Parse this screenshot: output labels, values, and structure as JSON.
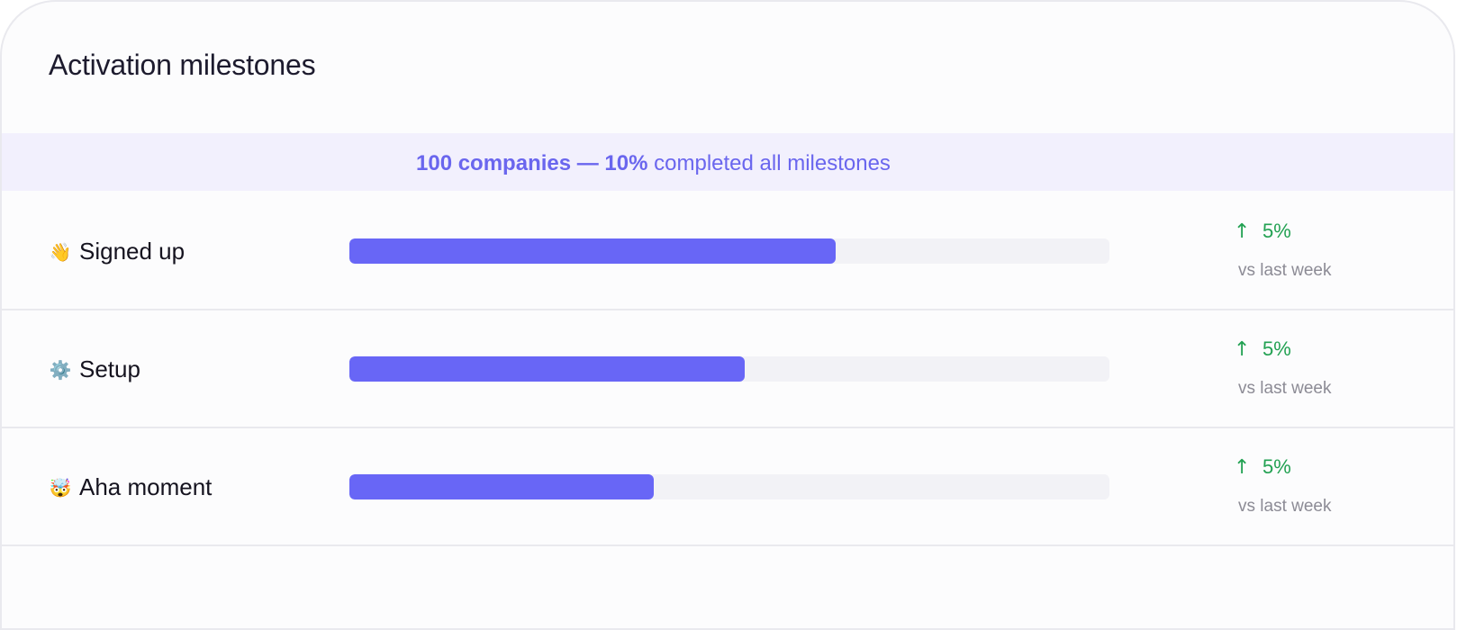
{
  "card": {
    "title": "Activation milestones"
  },
  "summary": {
    "count_text": "100 companies — 10%",
    "suffix_text": " completed all milestones"
  },
  "milestones": [
    {
      "icon": "👋",
      "icon_name": "waving-hand-icon",
      "label": "Signed up",
      "progress_fraction": 0.64,
      "delta": "5%",
      "delta_arrow": "↑",
      "comparison": "vs last week"
    },
    {
      "icon": "⚙️",
      "icon_name": "gear-icon",
      "label": "Setup",
      "progress_fraction": 0.52,
      "delta": "5%",
      "delta_arrow": "↑",
      "comparison": "vs last week"
    },
    {
      "icon": "🤯",
      "icon_name": "exploding-head-icon",
      "label": "Aha moment",
      "progress_fraction": 0.4,
      "delta": "5%",
      "delta_arrow": "↑",
      "comparison": "vs last week"
    }
  ],
  "colors": {
    "bar_fill": "#6866f6",
    "bar_track": "#f2f2f6",
    "positive_delta": "#22a152",
    "banner_bg": "#f2f0fd",
    "banner_text": "#6a66ee"
  }
}
